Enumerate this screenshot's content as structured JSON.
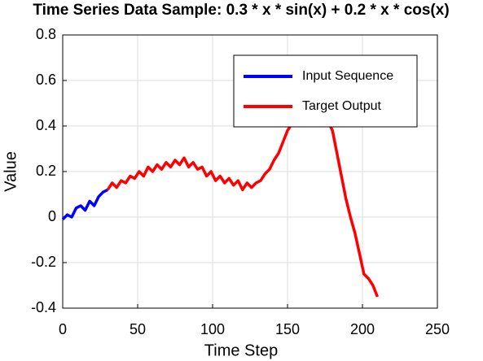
{
  "chart_data": {
    "type": "line",
    "title": "Time Series Data Sample: 0.3 * x * sin(x) + 0.2 * x * cos(x)",
    "xlabel": "Time Step",
    "ylabel": "Value",
    "xlim": [
      0,
      250
    ],
    "xticks": [
      0,
      50,
      100,
      150,
      200,
      250
    ],
    "ylim": [
      -0.4,
      0.8
    ],
    "yticks": [
      -0.4,
      -0.2,
      0,
      0.2,
      0.4,
      0.6,
      0.8
    ],
    "grid": true,
    "legend": "upper right",
    "series": [
      {
        "name": "Input Sequence",
        "color": "#0000ff",
        "x": [
          0,
          3,
          6,
          9,
          12,
          15,
          18,
          21,
          24,
          27,
          30
        ],
        "values": [
          -0.01,
          0.01,
          0.0,
          0.04,
          0.05,
          0.03,
          0.07,
          0.05,
          0.09,
          0.11,
          0.12
        ]
      },
      {
        "name": "Target Output",
        "color": "#ff0000",
        "x": [
          30,
          33,
          36,
          39,
          42,
          45,
          48,
          51,
          54,
          57,
          60,
          63,
          66,
          69,
          72,
          75,
          78,
          81,
          84,
          87,
          90,
          93,
          96,
          99,
          102,
          105,
          108,
          111,
          114,
          117,
          120,
          123,
          126,
          129,
          132,
          135,
          138,
          141,
          144,
          147,
          150,
          153,
          156,
          159,
          162,
          165,
          168,
          171,
          174,
          177,
          180,
          183,
          186,
          189,
          192,
          195,
          198,
          201,
          204,
          207,
          210
        ],
        "values": [
          0.12,
          0.15,
          0.13,
          0.16,
          0.15,
          0.18,
          0.17,
          0.2,
          0.18,
          0.22,
          0.2,
          0.23,
          0.21,
          0.24,
          0.22,
          0.25,
          0.23,
          0.26,
          0.22,
          0.24,
          0.21,
          0.22,
          0.18,
          0.2,
          0.16,
          0.18,
          0.15,
          0.17,
          0.14,
          0.16,
          0.12,
          0.15,
          0.13,
          0.15,
          0.16,
          0.19,
          0.21,
          0.25,
          0.28,
          0.33,
          0.38,
          0.41,
          0.46,
          0.5,
          0.53,
          0.55,
          0.54,
          0.52,
          0.47,
          0.42,
          0.38,
          0.28,
          0.18,
          0.08,
          0.0,
          -0.07,
          -0.16,
          -0.25,
          -0.27,
          -0.3,
          -0.35
        ]
      }
    ]
  }
}
